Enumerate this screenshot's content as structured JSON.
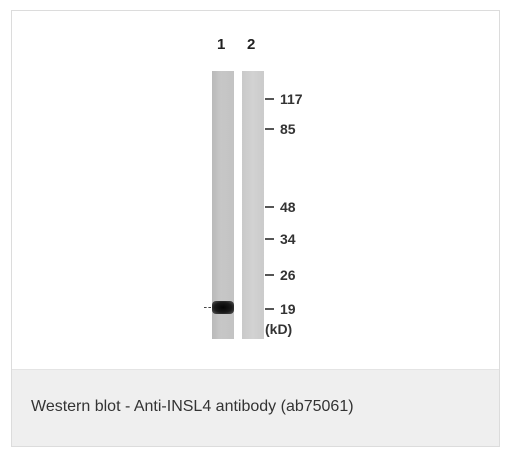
{
  "blot": {
    "lane_labels": [
      "1",
      "2"
    ],
    "markers": [
      "117",
      "85",
      "48",
      "34",
      "26",
      "19"
    ],
    "unit": "(kD)"
  },
  "caption": {
    "text": "Western blot - Anti-INSL4 antibody (ab75061)"
  }
}
